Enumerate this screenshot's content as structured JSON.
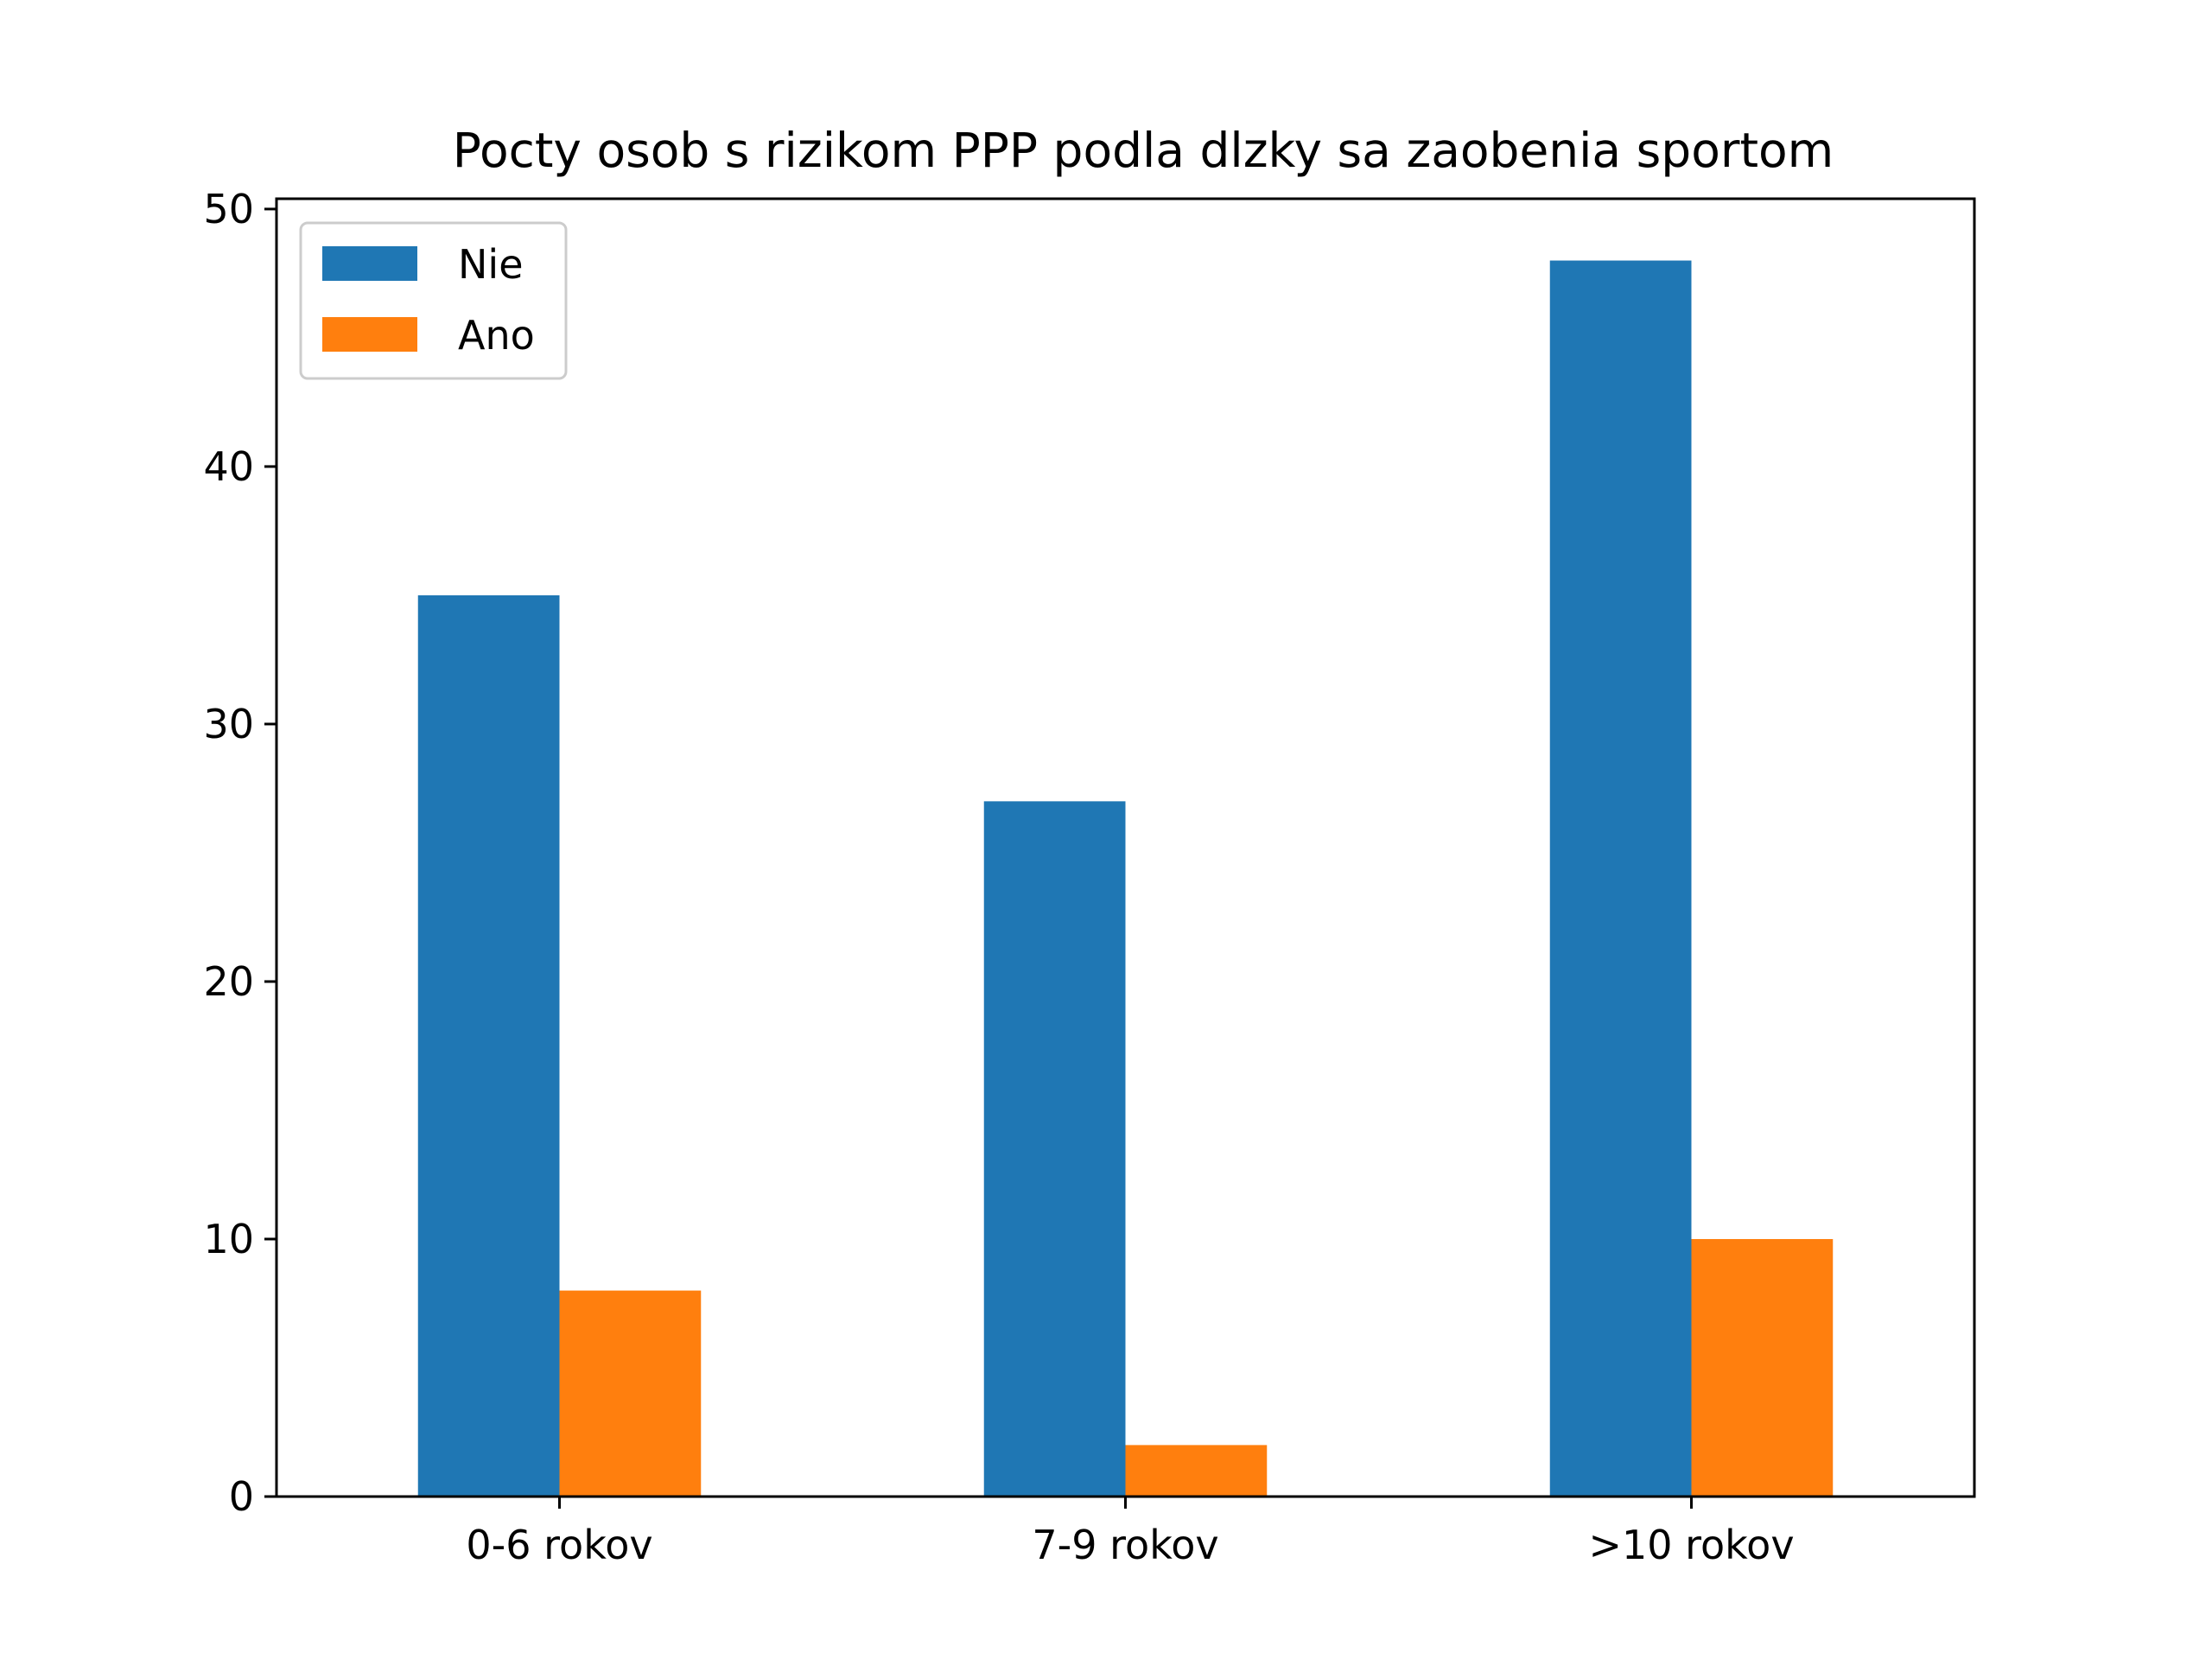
{
  "chart_data": {
    "type": "bar",
    "title": "Pocty osob s rizikom PPP podla dlzky sa zaobenia sportom",
    "xlabel": "",
    "ylabel": "",
    "categories": [
      "0-6 rokov",
      "7-9 rokov",
      ">10 rokov"
    ],
    "series": [
      {
        "name": "Nie",
        "color": "#1f77b4",
        "values": [
          35,
          27,
          48
        ]
      },
      {
        "name": "Ano",
        "color": "#ff7f0e",
        "values": [
          8,
          2,
          10
        ]
      }
    ],
    "ylim": [
      0,
      50.4
    ],
    "yticks": [
      0,
      10,
      20,
      30,
      40,
      50
    ],
    "grid": false,
    "legend_position": "top-left"
  }
}
